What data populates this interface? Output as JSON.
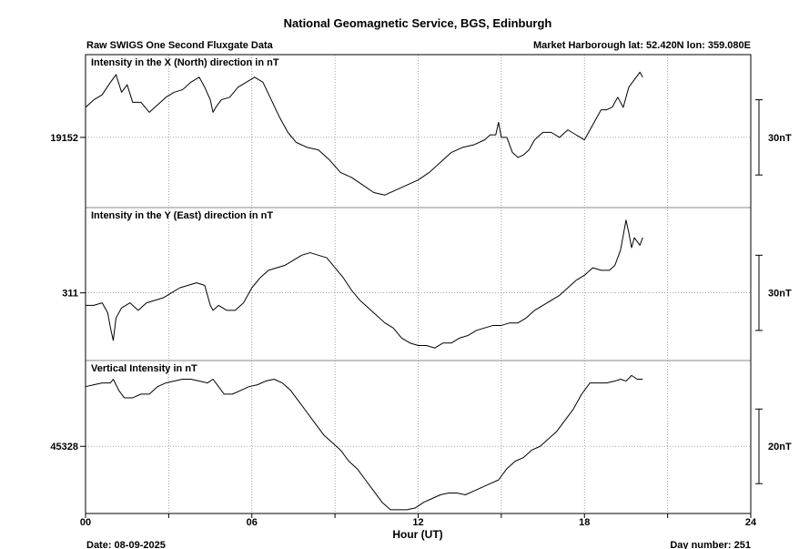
{
  "title": "National Geomagnetic Service, BGS, Edinburgh",
  "subtitle_left": "Raw SWIGS One Second Fluxgate Data",
  "subtitle_right": "Market Harborough  lat: 52.420N lon: 359.080E",
  "date_label": "Date: 08-09-2025",
  "day_number_label": "Day number:  251",
  "chart_data": {
    "type": "line",
    "xlabel": "Hour (UT)",
    "xlim": [
      0,
      24
    ],
    "x_ticks": [
      0,
      3,
      6,
      9,
      12,
      15,
      18,
      21,
      24
    ],
    "x_tick_labels": [
      "00",
      "06",
      "12",
      "18",
      "24"
    ],
    "x_tick_label_values": [
      0,
      6,
      12,
      18,
      24
    ],
    "grid": true,
    "panels": [
      {
        "name": "x",
        "label": "Intensity in the X (North) direction in nT",
        "ref_value": 19152,
        "ref_tick_label": "19152",
        "scale_label": "30nT",
        "scale_nT": 30,
        "ylim": [
          19124,
          19185
        ],
        "series": [
          {
            "x": [
              0,
              0.3,
              0.6,
              0.9,
              1.1,
              1.3,
              1.5,
              1.7,
              2.0,
              2.3,
              2.6,
              2.9,
              3.2,
              3.5,
              3.8,
              4.1,
              4.3,
              4.5,
              4.6,
              4.7,
              4.9,
              5.2,
              5.5,
              5.8,
              6.1,
              6.4,
              6.7,
              7.0,
              7.3,
              7.6,
              8.0,
              8.4,
              8.8,
              9.2,
              9.6,
              10.0,
              10.4,
              10.8,
              11.2,
              11.6,
              12.0,
              12.4,
              12.8,
              13.2,
              13.6,
              14.0,
              14.4,
              14.6,
              14.8,
              14.9,
              15.0,
              15.2,
              15.4,
              15.6,
              15.8,
              16.0,
              16.2,
              16.5,
              16.8,
              17.1,
              17.4,
              17.7,
              18.0,
              18.3,
              18.6,
              18.8,
              19.0,
              19.2,
              19.4,
              19.6,
              19.8,
              20.0,
              20.1
            ],
            "values": [
              19164,
              19167,
              19169,
              19174,
              19177,
              19170,
              19173,
              19166,
              19166,
              19162,
              19165,
              19168,
              19170,
              19171,
              19174,
              19176,
              19172,
              19167,
              19162,
              19164,
              19167,
              19168,
              19172,
              19174,
              19176,
              19174,
              19167,
              19160,
              19154,
              19150,
              19148,
              19147,
              19143,
              19138,
              19136,
              19133,
              19130,
              19129,
              19131,
              19133,
              19135,
              19138,
              19142,
              19146,
              19148,
              19149,
              19151,
              19153,
              19153,
              19158,
              19152,
              19152,
              19146,
              19144,
              19145,
              19147,
              19151,
              19154,
              19154,
              19152,
              19155,
              19153,
              19151,
              19157,
              19163,
              19163,
              19164,
              19168,
              19164,
              19172,
              19175,
              19178,
              19176
            ]
          }
        ]
      },
      {
        "name": "y",
        "label": "Intensity in the Y (East) direction in nT",
        "ref_value": 311,
        "ref_tick_label": "311",
        "scale_label": "30nT",
        "scale_nT": 30,
        "ylim": [
          284,
          345
        ],
        "series": [
          {
            "x": [
              0,
              0.3,
              0.6,
              0.8,
              0.9,
              1.0,
              1.1,
              1.3,
              1.6,
              1.9,
              2.2,
              2.5,
              2.8,
              3.1,
              3.4,
              3.7,
              4.0,
              4.3,
              4.5,
              4.6,
              4.8,
              5.1,
              5.4,
              5.7,
              6.0,
              6.3,
              6.6,
              6.9,
              7.2,
              7.5,
              7.8,
              8.1,
              8.4,
              8.7,
              9.0,
              9.3,
              9.6,
              9.9,
              10.2,
              10.5,
              10.8,
              11.1,
              11.4,
              11.7,
              12.0,
              12.3,
              12.6,
              12.9,
              13.2,
              13.5,
              13.8,
              14.1,
              14.4,
              14.7,
              15.0,
              15.3,
              15.6,
              15.9,
              16.2,
              16.5,
              16.8,
              17.1,
              17.4,
              17.7,
              18.0,
              18.3,
              18.6,
              18.9,
              19.1,
              19.3,
              19.5,
              19.6,
              19.7,
              19.8,
              20.0,
              20.1
            ],
            "values": [
              306,
              306,
              307,
              303,
              297,
              292,
              301,
              305,
              307,
              304,
              307,
              308,
              309,
              311,
              313,
              314,
              315,
              314,
              306,
              304,
              306,
              304,
              304,
              307,
              313,
              317,
              320,
              321,
              322,
              324,
              326,
              327,
              326,
              325,
              321,
              317,
              312,
              308,
              305,
              302,
              299,
              297,
              293,
              291,
              290,
              290,
              289,
              291,
              291,
              293,
              294,
              296,
              297,
              298,
              298,
              299,
              299,
              301,
              304,
              306,
              308,
              310,
              313,
              316,
              318,
              321,
              320,
              320,
              322,
              328,
              340,
              335,
              329,
              333,
              330,
              333
            ]
          }
        ]
      },
      {
        "name": "z",
        "label": "Vertical Intensity in nT",
        "ref_value": 45328,
        "ref_tick_label": "45328",
        "scale_label": "20nT",
        "scale_nT": 20,
        "ylim": [
          45310,
          45351
        ],
        "series": [
          {
            "x": [
              0,
              0.3,
              0.6,
              0.9,
              1.0,
              1.2,
              1.4,
              1.7,
              2.0,
              2.3,
              2.6,
              2.9,
              3.2,
              3.5,
              3.8,
              4.1,
              4.4,
              4.6,
              4.8,
              5.0,
              5.3,
              5.6,
              5.9,
              6.2,
              6.5,
              6.8,
              7.1,
              7.4,
              7.7,
              8.0,
              8.3,
              8.6,
              8.9,
              9.2,
              9.5,
              9.8,
              10.1,
              10.4,
              10.7,
              11.0,
              11.3,
              11.6,
              11.9,
              12.2,
              12.5,
              12.8,
              13.1,
              13.4,
              13.7,
              14.0,
              14.3,
              14.6,
              14.9,
              15.2,
              15.5,
              15.8,
              16.1,
              16.4,
              16.7,
              17.0,
              17.3,
              17.6,
              17.9,
              18.2,
              18.5,
              18.8,
              19.1,
              19.3,
              19.5,
              19.7,
              19.9,
              20.1
            ],
            "values": [
              45344,
              45344.5,
              45345,
              45345,
              45346,
              45343,
              45341,
              45341,
              45342,
              45342,
              45344,
              45345,
              45345.5,
              45346,
              45346,
              45345.5,
              45345,
              45346,
              45344,
              45342,
              45342,
              45343,
              45344,
              45344.5,
              45345.5,
              45346,
              45345,
              45343,
              45340,
              45337,
              45334,
              45331,
              45329,
              45327,
              45324,
              45322,
              45319,
              45316,
              45313,
              45311,
              45311,
              45311,
              45311.5,
              45313,
              45314,
              45315,
              45315.5,
              45315.5,
              45315,
              45316,
              45317,
              45318,
              45319,
              45322,
              45324,
              45325,
              45327,
              45328,
              45330,
              45332,
              45335,
              45338,
              45342,
              45345,
              45345,
              45345,
              45345.5,
              45346,
              45345.5,
              45347,
              45346,
              45346
            ]
          }
        ]
      }
    ]
  }
}
